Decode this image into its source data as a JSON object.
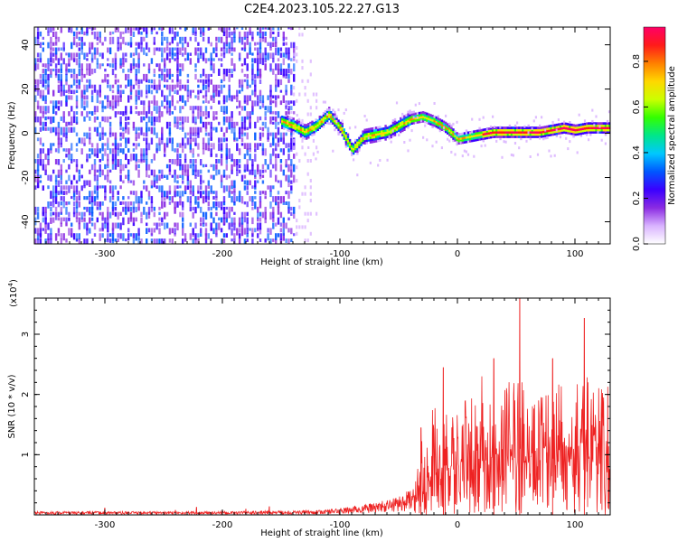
{
  "figure": {
    "title": "C2E4.2023.105.22.27.G13"
  },
  "chart_data": [
    {
      "type": "heatmap",
      "xlabel": "Height of straight line (km)",
      "ylabel": "Frequency (Hz)",
      "xlim": [
        -360,
        130
      ],
      "ylim": [
        -50,
        48
      ],
      "xticks": [
        -300,
        -200,
        -100,
        0,
        100
      ],
      "yticks": [
        -40,
        -20,
        0,
        20,
        40
      ],
      "noise_region_x": [
        -360,
        -140
      ],
      "ridge": {
        "x": [
          -150,
          -140,
          -130,
          -120,
          -110,
          -100,
          -90,
          -80,
          -70,
          -60,
          -50,
          -40,
          -30,
          -20,
          -10,
          0,
          10,
          20,
          30,
          40,
          50,
          60,
          70,
          80,
          90,
          100,
          110,
          120,
          130
        ],
        "frequency": [
          5,
          3,
          0,
          3,
          8,
          2,
          -8,
          -2,
          -1,
          0,
          3,
          6,
          7,
          5,
          2,
          -3,
          -2,
          -1,
          0,
          0,
          0,
          0,
          0,
          1,
          2,
          1,
          2,
          2,
          2
        ]
      },
      "colorbar": {
        "label": "Normalized spectral amplitude",
        "range": [
          0.0,
          0.95
        ],
        "ticks": [
          "0.0",
          "0.2",
          "0.4",
          "0.6",
          "0.8"
        ],
        "colors": [
          "#ffffff",
          "#d9b3ff",
          "#8a2be2",
          "#3a00ff",
          "#0057ff",
          "#00c8ff",
          "#00e68a",
          "#33ff00",
          "#ccff00",
          "#ffd700",
          "#ff7f00",
          "#ff1a1a",
          "#ff0066"
        ]
      }
    },
    {
      "type": "line",
      "xlabel": "Height of straight line (km)",
      "ylabel": "SNR (10 * v/v)",
      "scale_label": "(x10",
      "scale_exp": "4",
      "scale_close": ")",
      "xlim": [
        -360,
        130
      ],
      "ylim": [
        0,
        3.6
      ],
      "xticks": [
        -300,
        -200,
        -100,
        0,
        100
      ],
      "yticks": [
        1,
        2,
        3
      ],
      "series": [
        {
          "color": "#ee2222",
          "envelope": {
            "x": [
              -360,
              -300,
              -200,
              -120,
              -100,
              -80,
              -60,
              -50,
              -40,
              -35,
              -30,
              -20,
              -10,
              0,
              10,
              20,
              30,
              40,
              50,
              60,
              70,
              80,
              90,
              100,
              110,
              120,
              130
            ],
            "value": [
              0.03,
              0.03,
              0.03,
              0.04,
              0.06,
              0.09,
              0.13,
              0.17,
              0.22,
              0.6,
              0.8,
              0.9,
              1.0,
              1.05,
              1.15,
              1.2,
              1.25,
              1.3,
              1.3,
              1.3,
              1.3,
              1.3,
              1.3,
              1.3,
              1.35,
              1.35,
              1.35
            ]
          },
          "peaks": [
            {
              "x": -12,
              "value": 2.45
            },
            {
              "x": 31,
              "value": 2.6
            },
            {
              "x": 53,
              "value": 3.6
            },
            {
              "x": 81,
              "value": 2.6
            },
            {
              "x": 108,
              "value": 3.27
            },
            {
              "x": -31,
              "value": 1.45
            },
            {
              "x": -300,
              "value": 0.12
            },
            {
              "x": -240,
              "value": 0.08
            },
            {
              "x": -222,
              "value": 0.13
            },
            {
              "x": -180,
              "value": 0.1
            },
            {
              "x": -160,
              "value": 0.14
            }
          ]
        }
      ]
    }
  ]
}
